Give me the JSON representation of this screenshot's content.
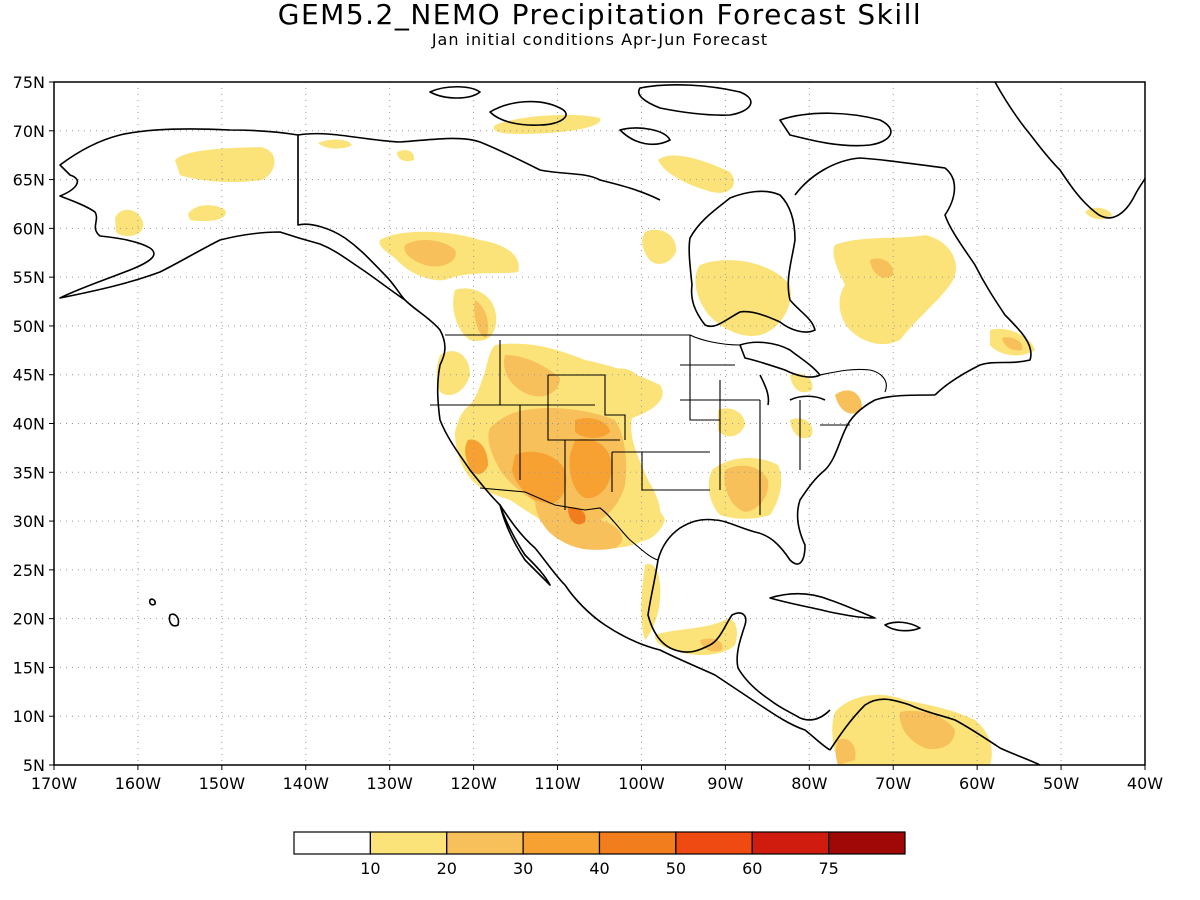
{
  "title": "GEM5.2_NEMO Precipitation Forecast Skill",
  "subtitle": "Jan initial conditions  Apr-Jun Forecast",
  "map": {
    "lon_range": [
      -170,
      -40
    ],
    "lat_range": [
      5,
      75
    ],
    "grid": "dotted",
    "lat_labels": [
      "75N",
      "70N",
      "65N",
      "60N",
      "55N",
      "50N",
      "45N",
      "40N",
      "35N",
      "30N",
      "25N",
      "20N",
      "15N",
      "10N",
      "5N"
    ],
    "lon_labels": [
      "170W",
      "160W",
      "150W",
      "140W",
      "130W",
      "120W",
      "110W",
      "100W",
      "90W",
      "80W",
      "70W",
      "60W",
      "50W",
      "40W"
    ]
  },
  "colorbar": {
    "labels": [
      "10",
      "20",
      "30",
      "40",
      "50",
      "60",
      "75"
    ],
    "colors": [
      "#ffffff",
      "#fbe37a",
      "#f8c05a",
      "#f6a132",
      "#f27d1c",
      "#ee4a11",
      "#d01c0f",
      "#a00808"
    ]
  }
}
